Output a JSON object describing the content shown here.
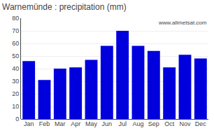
{
  "chart_data": {
    "type": "bar",
    "title": "Warnemünde : precipitation (mm)",
    "categories": [
      "Jan",
      "Feb",
      "Mar",
      "Apr",
      "May",
      "Jun",
      "Jul",
      "Aug",
      "Sep",
      "Oct",
      "Nov",
      "Dec"
    ],
    "values": [
      46,
      31,
      40,
      41,
      47,
      58,
      70,
      58,
      54,
      41,
      51,
      48
    ],
    "color": "#0000DD",
    "ylim": [
      0,
      80
    ],
    "yticks": [
      0,
      10,
      20,
      30,
      40,
      50,
      60,
      70,
      80
    ],
    "grid": true,
    "annotations": [
      "www.allmetsat.com"
    ]
  }
}
